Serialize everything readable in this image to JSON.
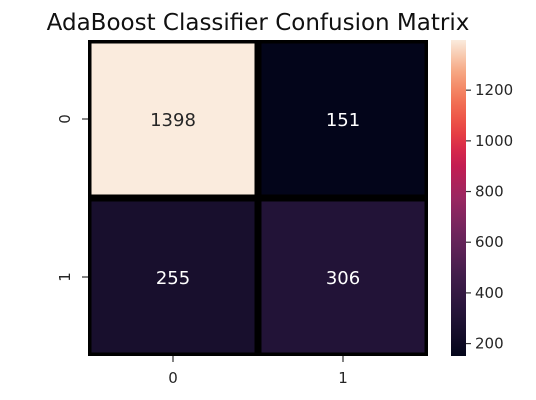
{
  "chart_data": {
    "type": "heatmap",
    "title": "AdaBoost Classifier Confusion Matrix",
    "xlabel": "",
    "ylabel": "",
    "x_ticks": [
      "0",
      "1"
    ],
    "y_ticks": [
      "0",
      "1"
    ],
    "values": [
      [
        1398,
        151
      ],
      [
        255,
        306
      ]
    ],
    "colorbar": {
      "ticks": [
        "200",
        "400",
        "600",
        "800",
        "1000",
        "1200"
      ],
      "tick_values": [
        200,
        400,
        600,
        800,
        1000,
        1200
      ],
      "range": [
        151,
        1398
      ],
      "colormap": "rocket"
    },
    "cell_border_color": "#000000"
  }
}
